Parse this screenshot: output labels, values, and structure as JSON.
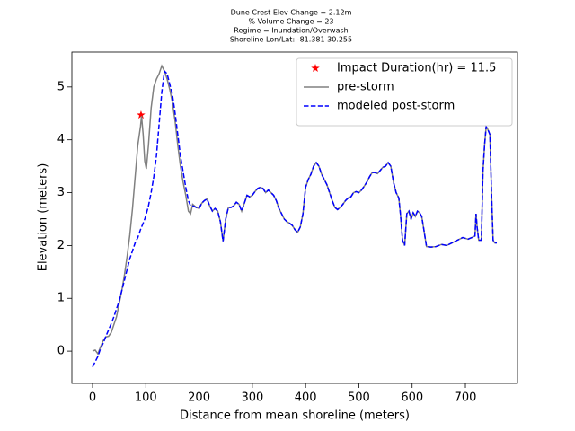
{
  "chart_data": {
    "type": "line",
    "title": [
      "Dune Crest Elev Change = 2.12m",
      "% Volume Change = 23",
      "Regime = Inundation/Overwash",
      "Shoreline Lon/Lat: -81.381 30.255"
    ],
    "xlabel": "Distance from mean shoreline (meters)",
    "ylabel": "Elevation (meters)",
    "xlim": [
      -38.8,
      797.8
    ],
    "ylim": [
      -0.61,
      5.66
    ],
    "xticks": [
      0,
      100,
      200,
      300,
      400,
      500,
      600,
      700
    ],
    "yticks": [
      0,
      1,
      2,
      3,
      4,
      5
    ],
    "legend": "upper right",
    "x": [
      0,
      5,
      10,
      15,
      20,
      25,
      30,
      35,
      40,
      45,
      50,
      55,
      60,
      65,
      70,
      75,
      80,
      85,
      90,
      92,
      95,
      98,
      101,
      105,
      110,
      115,
      120,
      125,
      130,
      135,
      140,
      145,
      150,
      155,
      160,
      165,
      170,
      175,
      180,
      184,
      188,
      195,
      200,
      205,
      210,
      215,
      220,
      225,
      230,
      235,
      240,
      245,
      250,
      255,
      260,
      265,
      270,
      275,
      280,
      285,
      290,
      295,
      300,
      305,
      310,
      315,
      320,
      325,
      330,
      335,
      340,
      345,
      350,
      355,
      360,
      365,
      370,
      375,
      380,
      385,
      390,
      395,
      400,
      405,
      410,
      415,
      420,
      425,
      430,
      435,
      440,
      445,
      450,
      455,
      460,
      465,
      470,
      475,
      480,
      485,
      490,
      495,
      500,
      505,
      510,
      515,
      520,
      525,
      530,
      535,
      540,
      545,
      550,
      555,
      560,
      565,
      570,
      575,
      578,
      582,
      586,
      590,
      594,
      598,
      602,
      606,
      610,
      614,
      618,
      622,
      627,
      635,
      645,
      655,
      665,
      675,
      685,
      695,
      705,
      712,
      718,
      720,
      722,
      725,
      730,
      733,
      736,
      739,
      742,
      746,
      749,
      752,
      755,
      759
    ],
    "series": [
      {
        "name": "Impact Duration(hr) = 11.5",
        "color": "#ff0000",
        "marker": "star",
        "x": [
          91
        ],
        "values": [
          4.47
        ]
      },
      {
        "name": "pre-storm",
        "color": "#808080",
        "linestyle": "solid",
        "values": [
          0.0,
          0.02,
          -0.05,
          0.08,
          0.2,
          0.27,
          0.28,
          0.35,
          0.5,
          0.65,
          0.9,
          1.15,
          1.45,
          1.8,
          2.2,
          2.7,
          3.3,
          3.9,
          4.25,
          4.45,
          4.1,
          3.6,
          3.45,
          3.9,
          4.6,
          5.0,
          5.15,
          5.25,
          5.4,
          5.3,
          5.15,
          4.95,
          4.7,
          4.35,
          3.9,
          3.5,
          3.2,
          2.95,
          2.65,
          2.6,
          2.78,
          2.72,
          2.7,
          2.8,
          2.85,
          2.88,
          2.75,
          2.65,
          2.7,
          2.65,
          2.45,
          2.08,
          2.5,
          2.72,
          2.72,
          2.75,
          2.82,
          2.78,
          2.65,
          2.8,
          2.95,
          2.92,
          2.95,
          3.02,
          3.08,
          3.1,
          3.08,
          3.0,
          3.05,
          3.0,
          2.95,
          2.85,
          2.7,
          2.6,
          2.5,
          2.45,
          2.42,
          2.38,
          2.3,
          2.25,
          2.35,
          2.6,
          3.1,
          3.25,
          3.35,
          3.5,
          3.57,
          3.5,
          3.35,
          3.25,
          3.15,
          3.0,
          2.85,
          2.72,
          2.68,
          2.72,
          2.78,
          2.85,
          2.9,
          2.92,
          3.0,
          3.02,
          3.0,
          3.05,
          3.12,
          3.2,
          3.3,
          3.38,
          3.38,
          3.36,
          3.42,
          3.48,
          3.5,
          3.57,
          3.5,
          3.2,
          3.0,
          2.9,
          2.6,
          2.1,
          2.0,
          2.6,
          2.65,
          2.5,
          2.62,
          2.55,
          2.65,
          2.62,
          2.55,
          2.3,
          1.98,
          1.97,
          1.98,
          2.02,
          2.0,
          2.05,
          2.1,
          2.15,
          2.12,
          2.15,
          2.18,
          2.6,
          2.35,
          2.1,
          2.1,
          3.4,
          3.9,
          4.25,
          4.2,
          4.1,
          3.0,
          2.1,
          2.05,
          2.05
        ]
      },
      {
        "name": "modeled post-storm",
        "color": "#0000ff",
        "linestyle": "dashed",
        "values": [
          -0.3,
          -0.2,
          -0.1,
          0.05,
          0.15,
          0.28,
          0.4,
          0.52,
          0.65,
          0.8,
          0.95,
          1.15,
          1.35,
          1.55,
          1.75,
          1.9,
          2.05,
          2.15,
          2.3,
          2.35,
          2.42,
          2.5,
          2.6,
          2.75,
          3.0,
          3.3,
          3.7,
          4.3,
          4.9,
          5.3,
          5.25,
          5.05,
          4.85,
          4.5,
          4.1,
          3.7,
          3.4,
          3.1,
          2.85,
          2.75,
          2.75,
          2.72,
          2.7,
          2.8,
          2.85,
          2.88,
          2.75,
          2.65,
          2.7,
          2.65,
          2.45,
          2.08,
          2.5,
          2.72,
          2.72,
          2.75,
          2.82,
          2.78,
          2.65,
          2.8,
          2.95,
          2.92,
          2.95,
          3.02,
          3.08,
          3.1,
          3.08,
          3.0,
          3.05,
          3.0,
          2.95,
          2.85,
          2.7,
          2.6,
          2.5,
          2.45,
          2.42,
          2.38,
          2.3,
          2.25,
          2.35,
          2.6,
          3.1,
          3.25,
          3.35,
          3.5,
          3.57,
          3.5,
          3.35,
          3.25,
          3.15,
          3.0,
          2.85,
          2.72,
          2.68,
          2.72,
          2.78,
          2.85,
          2.9,
          2.92,
          3.0,
          3.02,
          3.0,
          3.05,
          3.12,
          3.2,
          3.3,
          3.38,
          3.38,
          3.36,
          3.42,
          3.48,
          3.5,
          3.57,
          3.5,
          3.2,
          3.0,
          2.9,
          2.6,
          2.1,
          2.0,
          2.6,
          2.65,
          2.5,
          2.62,
          2.55,
          2.65,
          2.62,
          2.55,
          2.3,
          1.98,
          1.97,
          1.98,
          2.02,
          2.0,
          2.05,
          2.1,
          2.15,
          2.12,
          2.15,
          2.18,
          2.6,
          2.35,
          2.1,
          2.1,
          3.4,
          3.9,
          4.25,
          4.2,
          4.1,
          3.0,
          2.1,
          2.05,
          2.05
        ]
      }
    ]
  }
}
